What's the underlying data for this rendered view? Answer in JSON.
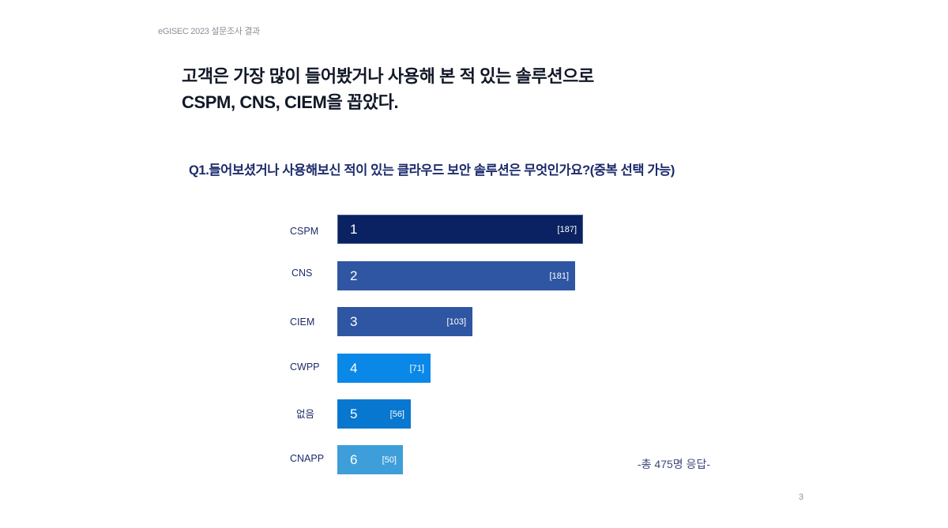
{
  "header": {
    "label": "eGISEC 2023 설문조사 결과"
  },
  "headline": {
    "line1": "고객은 가장 많이 들어봤거나 사용해 본 적 있는 솔루션으로",
    "line2": "CSPM, CNS, CIEM을 꼽았다."
  },
  "colors": {
    "bar_1": "#0a2261",
    "bar_2": "#2f56a2",
    "bar_3": "#2f56a2",
    "bar_4": "#0a88e8",
    "bar_5": "#0877d0",
    "bar_6": "#3d9ed9"
  },
  "footer": {
    "page_number": "3"
  },
  "chart_data": {
    "type": "bar",
    "orientation": "horizontal",
    "title": "Q1.들어보셨거나 사용해보신 적이 있는 클라우드 보안 솔루션은 무엇인가요?(중복 선택 가능)",
    "categories": [
      "CSPM",
      "CNS",
      "CIEM",
      "CWPP",
      "없음",
      "CNAPP"
    ],
    "ranks": [
      "1",
      "2",
      "3",
      "4",
      "5",
      "6"
    ],
    "values": [
      187,
      181,
      103,
      71,
      56,
      50
    ],
    "value_labels": [
      "[187]",
      "[181]",
      "[103]",
      "[71]",
      "[56]",
      "[50]"
    ],
    "annotation": "-총 475명 응답-",
    "xlabel": "",
    "ylabel": ""
  }
}
